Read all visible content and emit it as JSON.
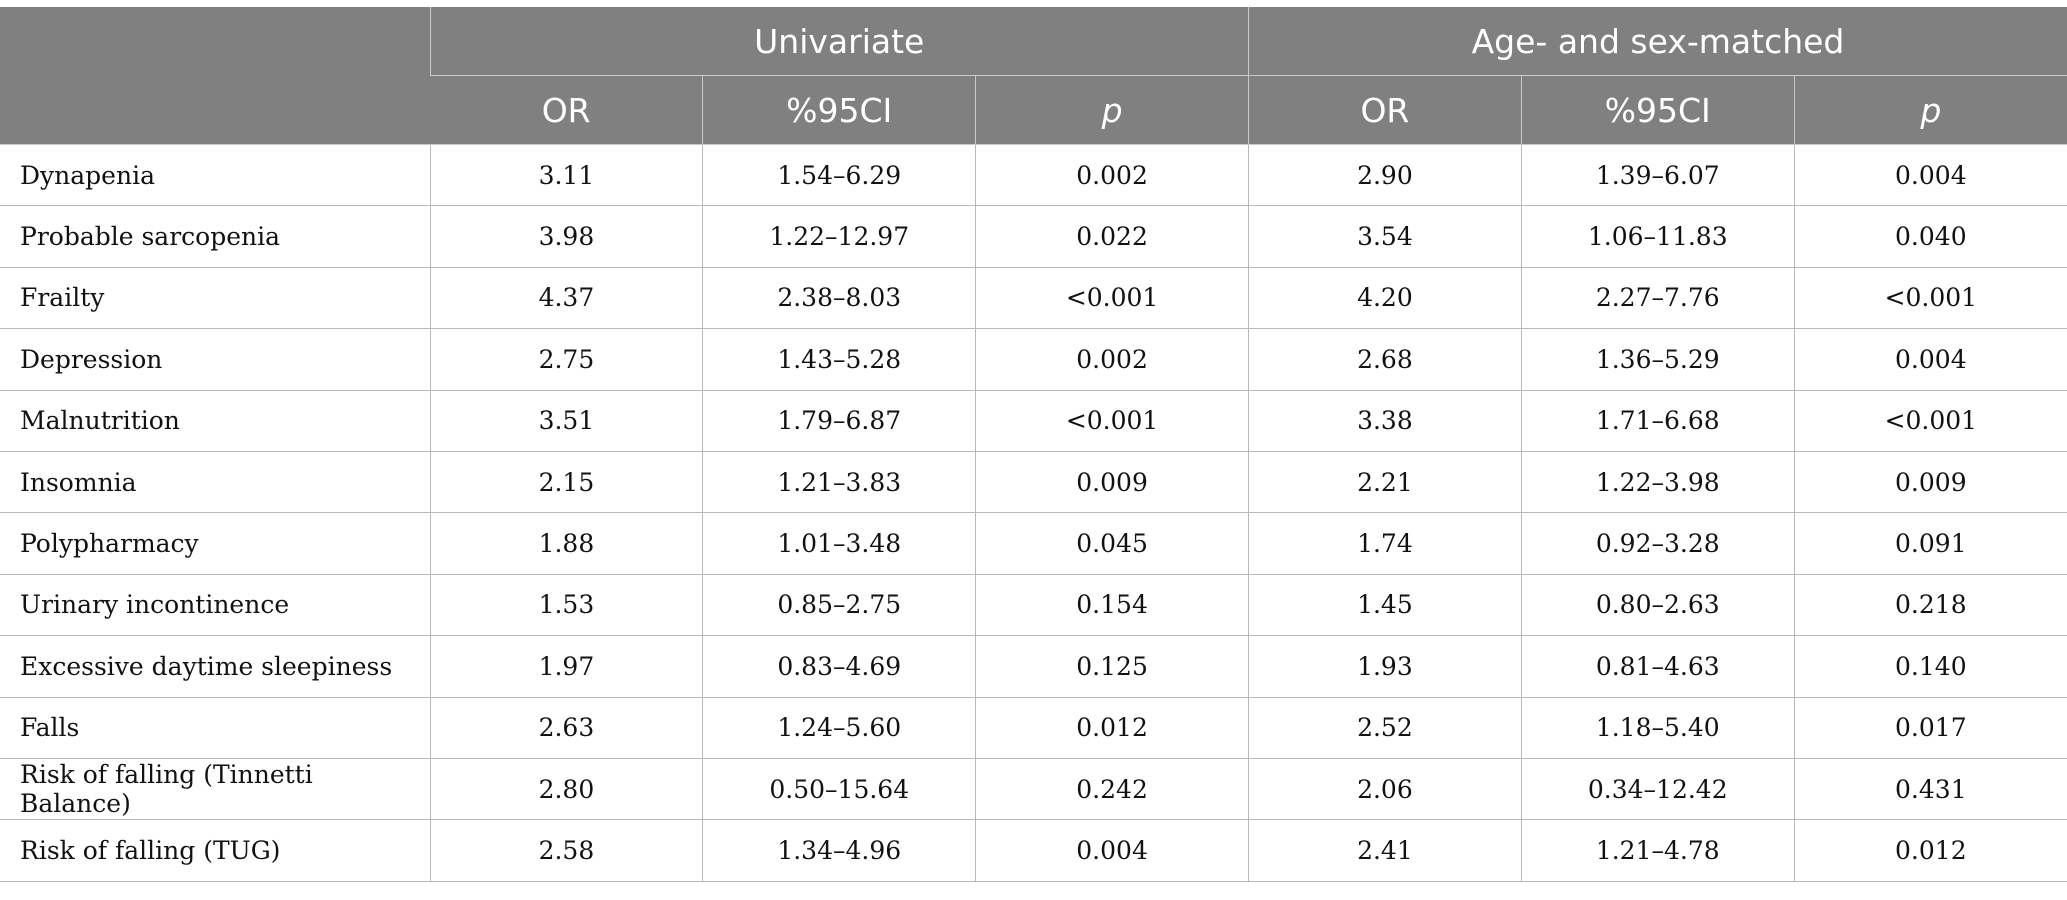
{
  "header": {
    "groups": [
      {
        "label": "Univariate"
      },
      {
        "label": "Age- and sex-matched"
      }
    ],
    "subcolumns": [
      "OR",
      "%95CI",
      "p",
      "OR",
      "%95CI",
      "p"
    ]
  },
  "rows": [
    {
      "label": "Dynapenia",
      "cells": [
        "3.11",
        "1.54–6.29",
        "0.002",
        "2.90",
        "1.39–6.07",
        "0.004"
      ]
    },
    {
      "label": "Probable sarcopenia",
      "cells": [
        "3.98",
        "1.22–12.97",
        "0.022",
        "3.54",
        "1.06–11.83",
        "0.040"
      ]
    },
    {
      "label": "Frailty",
      "cells": [
        "4.37",
        "2.38–8.03",
        "<0.001",
        "4.20",
        "2.27–7.76",
        "<0.001"
      ]
    },
    {
      "label": "Depression",
      "cells": [
        "2.75",
        "1.43–5.28",
        "0.002",
        "2.68",
        "1.36–5.29",
        "0.004"
      ]
    },
    {
      "label": "Malnutrition",
      "cells": [
        "3.51",
        "1.79–6.87",
        "<0.001",
        "3.38",
        "1.71–6.68",
        "<0.001"
      ]
    },
    {
      "label": "Insomnia",
      "cells": [
        "2.15",
        "1.21–3.83",
        "0.009",
        "2.21",
        "1.22–3.98",
        "0.009"
      ]
    },
    {
      "label": "Polypharmacy",
      "cells": [
        "1.88",
        "1.01–3.48",
        "0.045",
        "1.74",
        "0.92–3.28",
        "0.091"
      ]
    },
    {
      "label": "Urinary incontinence",
      "cells": [
        "1.53",
        "0.85–2.75",
        "0.154",
        "1.45",
        "0.80–2.63",
        "0.218"
      ]
    },
    {
      "label": "Excessive daytime sleepiness",
      "cells": [
        "1.97",
        "0.83–4.69",
        "0.125",
        "1.93",
        "0.81–4.63",
        "0.140"
      ]
    },
    {
      "label": "Falls",
      "cells": [
        "2.63",
        "1.24–5.60",
        "0.012",
        "2.52",
        "1.18–5.40",
        "0.017"
      ]
    },
    {
      "label": "Risk of falling (Tinnetti Balance)",
      "cells": [
        "2.80",
        "0.50–15.64",
        "0.242",
        "2.06",
        "0.34–12.42",
        "0.431"
      ]
    },
    {
      "label": "Risk of falling (TUG)",
      "cells": [
        "2.58",
        "1.34–4.96",
        "0.004",
        "2.41",
        "1.21–4.78",
        "0.012"
      ]
    }
  ],
  "colors": {
    "header_background": "#808080",
    "header_text": "#ffffff",
    "grid_line": "#b8b8b8"
  }
}
